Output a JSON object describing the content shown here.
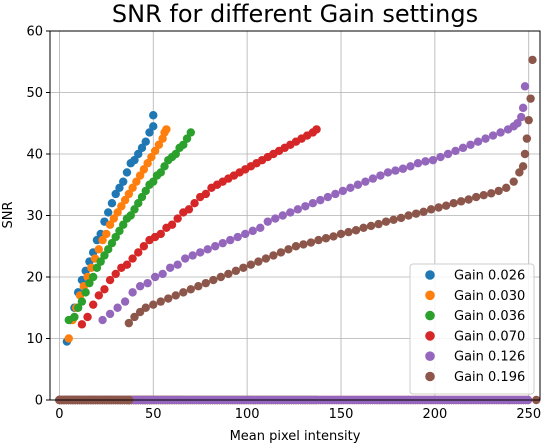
{
  "chart_data": {
    "type": "scatter",
    "title": "SNR for different Gain settings",
    "xlabel": "Mean pixel intensity",
    "ylabel": "SNR",
    "xlim": [
      -5,
      256
    ],
    "ylim": [
      0,
      60
    ],
    "xticks": [
      0,
      50,
      100,
      150,
      200,
      250
    ],
    "yticks": [
      0,
      10,
      20,
      30,
      40,
      50,
      60
    ],
    "grid": true,
    "legend_position": "lower-right",
    "series": [
      {
        "name": "Gain 0.026",
        "color": "#1f77b4",
        "points": [
          [
            4,
            9.5
          ],
          [
            6,
            13
          ],
          [
            8,
            15
          ],
          [
            10,
            17.5
          ],
          [
            12,
            19.5
          ],
          [
            14,
            21
          ],
          [
            16,
            22.5
          ],
          [
            18,
            24
          ],
          [
            20,
            26
          ],
          [
            22,
            27
          ],
          [
            24,
            29
          ],
          [
            26,
            30.5
          ],
          [
            28,
            32
          ],
          [
            30,
            33.5
          ],
          [
            32,
            34.5
          ],
          [
            34,
            35.5
          ],
          [
            36,
            37
          ],
          [
            38,
            38.5
          ],
          [
            40,
            39
          ],
          [
            42,
            40
          ],
          [
            44,
            41
          ],
          [
            46,
            42
          ],
          [
            48,
            43.5
          ],
          [
            50,
            44.5
          ],
          [
            50,
            46.3
          ]
        ],
        "floor_x": [
          0,
          50
        ]
      },
      {
        "name": "Gain 0.030",
        "color": "#ff7f0e",
        "points": [
          [
            5,
            10
          ],
          [
            7,
            13
          ],
          [
            9,
            15
          ],
          [
            11,
            17
          ],
          [
            13,
            18.5
          ],
          [
            15,
            20
          ],
          [
            17,
            21.5
          ],
          [
            19,
            23
          ],
          [
            21,
            24.5
          ],
          [
            23,
            26
          ],
          [
            25,
            27
          ],
          [
            27,
            28.5
          ],
          [
            29,
            29.5
          ],
          [
            31,
            30.5
          ],
          [
            33,
            31.5
          ],
          [
            35,
            32.5
          ],
          [
            37,
            33.5
          ],
          [
            39,
            34.5
          ],
          [
            41,
            35.5
          ],
          [
            43,
            36.5
          ],
          [
            45,
            37.5
          ],
          [
            47,
            38.5
          ],
          [
            49,
            39.5
          ],
          [
            51,
            40.5
          ],
          [
            53,
            41.5
          ],
          [
            55,
            42.5
          ],
          [
            56,
            43.5
          ],
          [
            57,
            44
          ]
        ],
        "floor_x": [
          0,
          66
        ]
      },
      {
        "name": "Gain 0.036",
        "color": "#2ca02c",
        "points": [
          [
            5,
            13
          ],
          [
            8,
            13.5
          ],
          [
            10,
            15
          ],
          [
            12,
            16
          ],
          [
            14,
            17.5
          ],
          [
            16,
            19
          ],
          [
            18,
            20
          ],
          [
            20,
            21.5
          ],
          [
            22,
            22.5
          ],
          [
            24,
            23.5
          ],
          [
            26,
            24.5
          ],
          [
            28,
            25.5
          ],
          [
            30,
            26.5
          ],
          [
            32,
            27.5
          ],
          [
            34,
            28.5
          ],
          [
            36,
            29.5
          ],
          [
            38,
            30
          ],
          [
            40,
            31
          ],
          [
            42,
            32
          ],
          [
            44,
            33
          ],
          [
            46,
            34
          ],
          [
            48,
            35
          ],
          [
            50,
            35.5
          ],
          [
            52,
            36.5
          ],
          [
            54,
            37
          ],
          [
            56,
            38
          ],
          [
            58,
            39
          ],
          [
            60,
            39.5
          ],
          [
            62,
            40
          ],
          [
            64,
            41
          ],
          [
            66,
            41.5
          ],
          [
            68,
            42.5
          ],
          [
            70,
            43.5
          ]
        ],
        "floor_x": [
          0,
          138
        ]
      },
      {
        "name": "Gain 0.070",
        "color": "#d62728",
        "points": [
          [
            12,
            12.3
          ],
          [
            15,
            13.5
          ],
          [
            18,
            15.5
          ],
          [
            21,
            17
          ],
          [
            24,
            18
          ],
          [
            27,
            19.5
          ],
          [
            30,
            20.5
          ],
          [
            33,
            21.5
          ],
          [
            36,
            22
          ],
          [
            39,
            23
          ],
          [
            42,
            24
          ],
          [
            45,
            25
          ],
          [
            48,
            26
          ],
          [
            51,
            26.5
          ],
          [
            54,
            27
          ],
          [
            57,
            28
          ],
          [
            60,
            28.5
          ],
          [
            63,
            29.5
          ],
          [
            66,
            30.5
          ],
          [
            69,
            31
          ],
          [
            72,
            32
          ],
          [
            75,
            33
          ],
          [
            78,
            33.5
          ],
          [
            81,
            34.5
          ],
          [
            84,
            35
          ],
          [
            87,
            35.5
          ],
          [
            90,
            36
          ],
          [
            93,
            36.5
          ],
          [
            96,
            37
          ],
          [
            99,
            37.5
          ],
          [
            102,
            38
          ],
          [
            105,
            38.5
          ],
          [
            108,
            39
          ],
          [
            111,
            39.5
          ],
          [
            114,
            40
          ],
          [
            117,
            40.5
          ],
          [
            120,
            41
          ],
          [
            123,
            41.5
          ],
          [
            126,
            42
          ],
          [
            129,
            42.5
          ],
          [
            132,
            43
          ],
          [
            135,
            43.5
          ],
          [
            137,
            44
          ]
        ],
        "floor_x": [
          0,
          250
        ]
      },
      {
        "name": "Gain 0.126",
        "color": "#9467bd",
        "points": [
          [
            23,
            13
          ],
          [
            27,
            14
          ],
          [
            31,
            15
          ],
          [
            35,
            16
          ],
          [
            39,
            17.5
          ],
          [
            43,
            18.5
          ],
          [
            47,
            19
          ],
          [
            51,
            20
          ],
          [
            55,
            20.5
          ],
          [
            59,
            21.5
          ],
          [
            63,
            22
          ],
          [
            67,
            23
          ],
          [
            71,
            23.5
          ],
          [
            75,
            24
          ],
          [
            79,
            24.5
          ],
          [
            83,
            25
          ],
          [
            87,
            25.5
          ],
          [
            91,
            26
          ],
          [
            95,
            26.5
          ],
          [
            99,
            27
          ],
          [
            103,
            27.5
          ],
          [
            107,
            28
          ],
          [
            111,
            29
          ],
          [
            115,
            29.5
          ],
          [
            119,
            30
          ],
          [
            123,
            30.5
          ],
          [
            127,
            31
          ],
          [
            131,
            31.5
          ],
          [
            135,
            32
          ],
          [
            139,
            32.5
          ],
          [
            143,
            33
          ],
          [
            147,
            33.5
          ],
          [
            151,
            34
          ],
          [
            155,
            34.5
          ],
          [
            159,
            35
          ],
          [
            163,
            35.5
          ],
          [
            167,
            36
          ],
          [
            171,
            36.5
          ],
          [
            175,
            37
          ],
          [
            179,
            37.3
          ],
          [
            183,
            37.6
          ],
          [
            187,
            38
          ],
          [
            191,
            38.5
          ],
          [
            195,
            38.8
          ],
          [
            199,
            39
          ],
          [
            203,
            39.5
          ],
          [
            207,
            40
          ],
          [
            211,
            40.5
          ],
          [
            215,
            41
          ],
          [
            219,
            41.5
          ],
          [
            223,
            42
          ],
          [
            227,
            42.5
          ],
          [
            231,
            43
          ],
          [
            235,
            43.5
          ],
          [
            239,
            44
          ],
          [
            242,
            44.5
          ],
          [
            244,
            45
          ],
          [
            246,
            46
          ],
          [
            247,
            47.5
          ],
          [
            248,
            51
          ]
        ],
        "floor_x": [
          0,
          250
        ]
      },
      {
        "name": "Gain 0.196",
        "color": "#8c564b",
        "points": [
          [
            37,
            12.5
          ],
          [
            40,
            13.5
          ],
          [
            43,
            14.3
          ],
          [
            46,
            15
          ],
          [
            50,
            15.5
          ],
          [
            54,
            16
          ],
          [
            58,
            16.5
          ],
          [
            62,
            17
          ],
          [
            66,
            17.5
          ],
          [
            70,
            18
          ],
          [
            74,
            18.5
          ],
          [
            78,
            19
          ],
          [
            82,
            19.5
          ],
          [
            86,
            20
          ],
          [
            90,
            20.5
          ],
          [
            94,
            21
          ],
          [
            98,
            21.5
          ],
          [
            102,
            22
          ],
          [
            106,
            22.5
          ],
          [
            110,
            23
          ],
          [
            114,
            23.5
          ],
          [
            118,
            24
          ],
          [
            122,
            24.5
          ],
          [
            126,
            25
          ],
          [
            130,
            25.3
          ],
          [
            134,
            25.6
          ],
          [
            138,
            26
          ],
          [
            142,
            26.3
          ],
          [
            146,
            26.6
          ],
          [
            150,
            27
          ],
          [
            154,
            27.3
          ],
          [
            158,
            27.6
          ],
          [
            162,
            28
          ],
          [
            166,
            28.3
          ],
          [
            170,
            28.6
          ],
          [
            174,
            29
          ],
          [
            178,
            29.3
          ],
          [
            182,
            29.6
          ],
          [
            186,
            30
          ],
          [
            190,
            30.3
          ],
          [
            194,
            30.6
          ],
          [
            198,
            31
          ],
          [
            202,
            31.3
          ],
          [
            206,
            31.6
          ],
          [
            210,
            32
          ],
          [
            214,
            32.3
          ],
          [
            218,
            32.6
          ],
          [
            222,
            33
          ],
          [
            226,
            33.3
          ],
          [
            230,
            33.6
          ],
          [
            234,
            34
          ],
          [
            238,
            34.5
          ],
          [
            242,
            35.5
          ],
          [
            245,
            37
          ],
          [
            247,
            38
          ],
          [
            248,
            40
          ],
          [
            249,
            42.5
          ],
          [
            250,
            45.5
          ],
          [
            251,
            49
          ],
          [
            252,
            55.3
          ]
        ],
        "floor_x": [
          0,
          38,
          254
        ]
      }
    ]
  }
}
